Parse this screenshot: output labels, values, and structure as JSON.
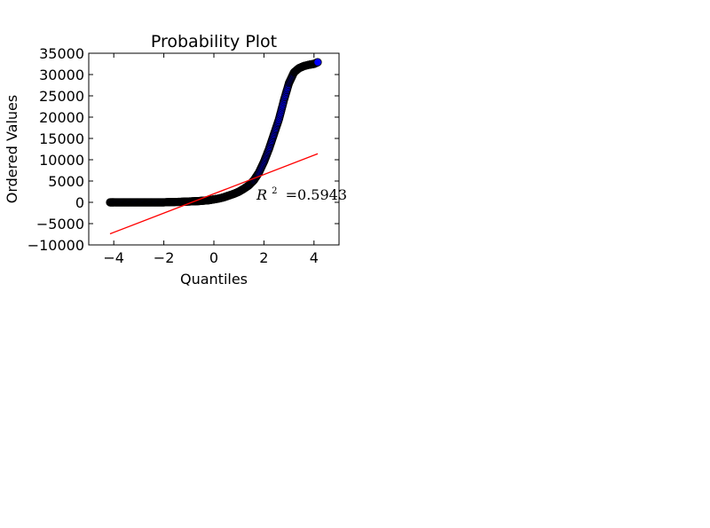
{
  "chart_data": {
    "type": "scatter",
    "title": "Probability Plot",
    "xlabel": "Quantiles",
    "ylabel": "Ordered Values",
    "xlim": [
      -5,
      5
    ],
    "ylim": [
      -10000,
      35000
    ],
    "xticks": [
      -4,
      -2,
      0,
      2,
      4
    ],
    "xtick_labels": [
      "−4",
      "−2",
      "0",
      "2",
      "4"
    ],
    "yticks": [
      -10000,
      -5000,
      0,
      5000,
      10000,
      15000,
      20000,
      25000,
      30000,
      35000
    ],
    "ytick_labels": [
      "−10000",
      "−5000",
      "0",
      "5000",
      "10000",
      "15000",
      "20000",
      "25000",
      "30000",
      "35000"
    ],
    "grid": false,
    "annotation": {
      "r2_label": "R",
      "r2_exponent": "2",
      "r2_value": "=0.5943",
      "x": 1.7,
      "y": 1200
    },
    "series": [
      {
        "kind": "points",
        "color": "#0000ff",
        "edge_color": "#000000",
        "points": [
          [
            -4.15,
            0
          ],
          [
            -4.0,
            0
          ],
          [
            -3.8,
            0
          ],
          [
            -3.6,
            0
          ],
          [
            -3.4,
            0
          ],
          [
            -3.2,
            0
          ],
          [
            -3.0,
            0
          ],
          [
            -2.8,
            0
          ],
          [
            -2.6,
            0
          ],
          [
            -2.4,
            0
          ],
          [
            -2.2,
            0
          ],
          [
            -2.0,
            0
          ],
          [
            -1.8,
            50
          ],
          [
            -1.6,
            80
          ],
          [
            -1.4,
            100
          ],
          [
            -1.2,
            150
          ],
          [
            -1.0,
            200
          ],
          [
            -0.8,
            250
          ],
          [
            -0.6,
            300
          ],
          [
            -0.4,
            400
          ],
          [
            -0.2,
            500
          ],
          [
            0.0,
            700
          ],
          [
            0.2,
            900
          ],
          [
            0.4,
            1200
          ],
          [
            0.6,
            1600
          ],
          [
            0.8,
            2000
          ],
          [
            1.0,
            2500
          ],
          [
            1.2,
            3200
          ],
          [
            1.4,
            4000
          ],
          [
            1.6,
            5200
          ],
          [
            1.8,
            7000
          ],
          [
            2.0,
            9500
          ],
          [
            2.2,
            12500
          ],
          [
            2.4,
            16000
          ],
          [
            2.6,
            19500
          ],
          [
            2.8,
            24000
          ],
          [
            3.0,
            28000
          ],
          [
            3.2,
            30500
          ],
          [
            3.4,
            31500
          ],
          [
            3.6,
            32000
          ],
          [
            3.8,
            32300
          ],
          [
            4.0,
            32500
          ],
          [
            4.15,
            32900
          ]
        ]
      },
      {
        "kind": "fit_line",
        "color": "#ff0000",
        "points": [
          [
            -4.15,
            -7400
          ],
          [
            4.15,
            11400
          ]
        ]
      }
    ]
  }
}
